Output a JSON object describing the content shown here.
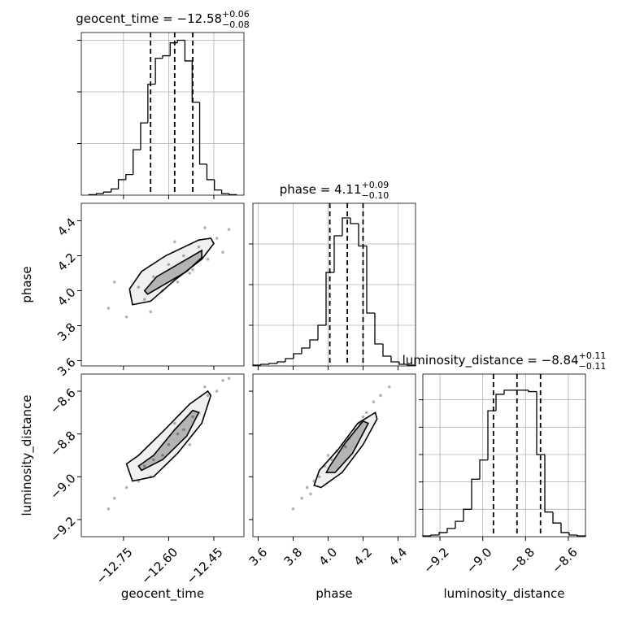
{
  "chart_data": {
    "type": "corner",
    "color": "#000000",
    "point_color": "#555555",
    "grid": true,
    "parameters": [
      {
        "name": "geocent_time",
        "title": "geocent_time = −12.58",
        "title_plus": "+0.06",
        "title_minus": "−0.08",
        "lim": [
          -12.89,
          -12.35
        ],
        "ticks": [
          {
            "value": -12.75,
            "label": "−12.75"
          },
          {
            "value": -12.6,
            "label": "−12.60"
          },
          {
            "value": -12.45,
            "label": "−12.45"
          }
        ],
        "quantiles": [
          -12.66,
          -12.58,
          -12.52
        ],
        "bins": [
          -12.865,
          -12.84,
          -12.816,
          -12.791,
          -12.767,
          -12.742,
          -12.718,
          -12.693,
          -12.669,
          -12.644,
          -12.62,
          -12.595,
          -12.571,
          -12.546,
          -12.522,
          -12.497,
          -12.473,
          -12.448,
          -12.424,
          -12.399,
          -12.375
        ],
        "counts": [
          10,
          30,
          60,
          120,
          300,
          400,
          880,
          1400,
          2150,
          2650,
          2700,
          2950,
          3000,
          2600,
          1800,
          600,
          300,
          100,
          30,
          10
        ],
        "count_lim": [
          0,
          3150
        ],
        "count_ticks": [
          1000,
          2000,
          3000
        ]
      },
      {
        "name": "phase",
        "title": "phase = 4.11",
        "title_plus": "+0.09",
        "title_minus": "−0.10",
        "lim": [
          3.57,
          4.5
        ],
        "ticks": [
          3.6,
          3.8,
          {
            "value": 4,
            "label": "4.0"
          },
          4.2,
          4.4
        ],
        "quantiles": [
          4.01,
          4.11,
          4.2
        ],
        "bins": [
          3.57,
          3.6165,
          3.663,
          3.7095,
          3.756,
          3.8025,
          3.849,
          3.8955,
          3.942,
          3.9885,
          4.035,
          4.0815,
          4.128,
          4.1745,
          4.221,
          4.2675,
          4.314,
          4.3605,
          4.407,
          4.4535,
          4.5
        ],
        "counts": [
          20,
          40,
          60,
          100,
          180,
          300,
          440,
          640,
          1000,
          2300,
          3200,
          3640,
          3500,
          2950,
          1300,
          540,
          240,
          100,
          40,
          20
        ],
        "count_lim": [
          0,
          4000
        ],
        "count_ticks": [
          1000,
          2000,
          3000
        ]
      },
      {
        "name": "luminosity_distance",
        "title": "luminosity_distance = −8.84",
        "title_plus": "+0.11",
        "title_minus": "−0.11",
        "lim": [
          -9.28,
          -8.52
        ],
        "ticks": [
          {
            "value": -9.2,
            "label": "−9.2"
          },
          {
            "value": -9,
            "label": "−9.0"
          },
          {
            "value": -8.8,
            "label": "−8.8"
          },
          {
            "value": -8.6,
            "label": "−8.6"
          }
        ],
        "quantiles": [
          -8.95,
          -8.84,
          -8.73
        ],
        "bins": [
          -9.28,
          -9.242,
          -9.204,
          -9.166,
          -9.128,
          -9.09,
          -9.052,
          -9.014,
          -8.976,
          -8.938,
          -8.9,
          -8.862,
          -8.824,
          -8.786,
          -8.748,
          -8.71,
          -8.672,
          -8.634,
          -8.596,
          -8.558,
          -8.52
        ],
        "counts": [
          30,
          60,
          150,
          300,
          560,
          1000,
          2100,
          2800,
          4600,
          5200,
          5350,
          5350,
          5350,
          5300,
          3000,
          900,
          500,
          150,
          60,
          30
        ],
        "count_lim": [
          0,
          5940
        ],
        "count_ticks": [
          1000,
          2000,
          3000,
          4000,
          5000
        ]
      }
    ],
    "pairs": [
      {
        "x": [
          -12.8,
          -12.74,
          -12.7,
          -12.68,
          -12.65,
          -12.62,
          -12.6,
          -12.57,
          -12.55,
          -12.52,
          -12.5,
          -12.47,
          -12.44,
          -12.42,
          -12.78,
          -12.66,
          -12.58,
          -12.53,
          -12.48,
          -12.4
        ],
        "y": [
          3.9,
          3.85,
          4.02,
          3.95,
          4.08,
          4.0,
          4.15,
          4.05,
          4.2,
          4.12,
          4.25,
          4.18,
          4.3,
          4.22,
          4.05,
          3.88,
          4.28,
          4.1,
          4.36,
          4.35
        ],
        "contours": [
          {
            "x": [
              -12.72,
              -12.73,
              -12.69,
              -12.61,
              -12.5,
              -12.46,
              -12.45,
              -12.49,
              -12.58,
              -12.66
            ],
            "y": [
              3.92,
              4.01,
              4.11,
              4.2,
              4.29,
              4.3,
              4.27,
              4.18,
              4.06,
              3.94
            ]
          },
          {
            "x": [
              -12.68,
              -12.64,
              -12.55,
              -12.49,
              -12.49,
              -12.54,
              -12.62,
              -12.67
            ],
            "y": [
              4.0,
              4.08,
              4.17,
              4.23,
              4.19,
              4.11,
              4.03,
              3.98
            ]
          }
        ]
      },
      {
        "x": [
          -12.8,
          -12.74,
          -12.7,
          -12.68,
          -12.65,
          -12.62,
          -12.6,
          -12.57,
          -12.55,
          -12.52,
          -12.5,
          -12.47,
          -12.44,
          -12.42,
          -12.78,
          -12.66,
          -12.58,
          -12.53,
          -12.48,
          -12.4
        ],
        "y": [
          -9.15,
          -9.05,
          -9.02,
          -8.95,
          -8.92,
          -8.9,
          -8.85,
          -8.8,
          -8.78,
          -8.72,
          -8.7,
          -8.62,
          -8.6,
          -8.55,
          -9.1,
          -9.0,
          -8.75,
          -8.85,
          -8.58,
          -8.54
        ],
        "contours": [
          {
            "x": [
              -12.74,
              -12.72,
              -12.65,
              -12.57,
              -12.49,
              -12.46,
              -12.47,
              -12.53,
              -12.62,
              -12.7
            ],
            "y": [
              -8.94,
              -9.02,
              -9.0,
              -8.89,
              -8.75,
              -8.62,
              -8.6,
              -8.66,
              -8.79,
              -8.9
            ]
          },
          {
            "x": [
              -12.69,
              -12.62,
              -12.54,
              -12.5,
              -12.52,
              -12.58,
              -12.65,
              -12.7
            ],
            "y": [
              -8.97,
              -8.92,
              -8.81,
              -8.7,
              -8.69,
              -8.78,
              -8.9,
              -8.95
            ]
          }
        ]
      },
      {
        "x": [
          3.8,
          3.85,
          3.88,
          3.92,
          3.95,
          3.98,
          4.02,
          4.05,
          4.08,
          4.12,
          4.15,
          4.18,
          4.22,
          4.26,
          4.3,
          4.35,
          3.9,
          4.0,
          4.1,
          4.2
        ],
        "y": [
          -9.15,
          -9.1,
          -9.05,
          -9.02,
          -9.0,
          -8.95,
          -8.92,
          -8.88,
          -8.85,
          -8.82,
          -8.78,
          -8.75,
          -8.7,
          -8.65,
          -8.62,
          -8.58,
          -9.08,
          -8.9,
          -8.86,
          -8.72
        ],
        "contours": [
          {
            "x": [
              3.92,
              3.96,
              4.08,
              4.2,
              4.28,
              4.27,
              4.17,
              4.06,
              3.95
            ],
            "y": [
              -9.04,
              -9.05,
              -8.98,
              -8.85,
              -8.73,
              -8.7,
              -8.75,
              -8.87,
              -8.97
            ]
          },
          {
            "x": [
              3.99,
              4.04,
              4.14,
              4.23,
              4.2,
              4.1,
              4.01
            ],
            "y": [
              -8.98,
              -8.98,
              -8.89,
              -8.75,
              -8.74,
              -8.84,
              -8.95
            ]
          }
        ]
      }
    ]
  }
}
